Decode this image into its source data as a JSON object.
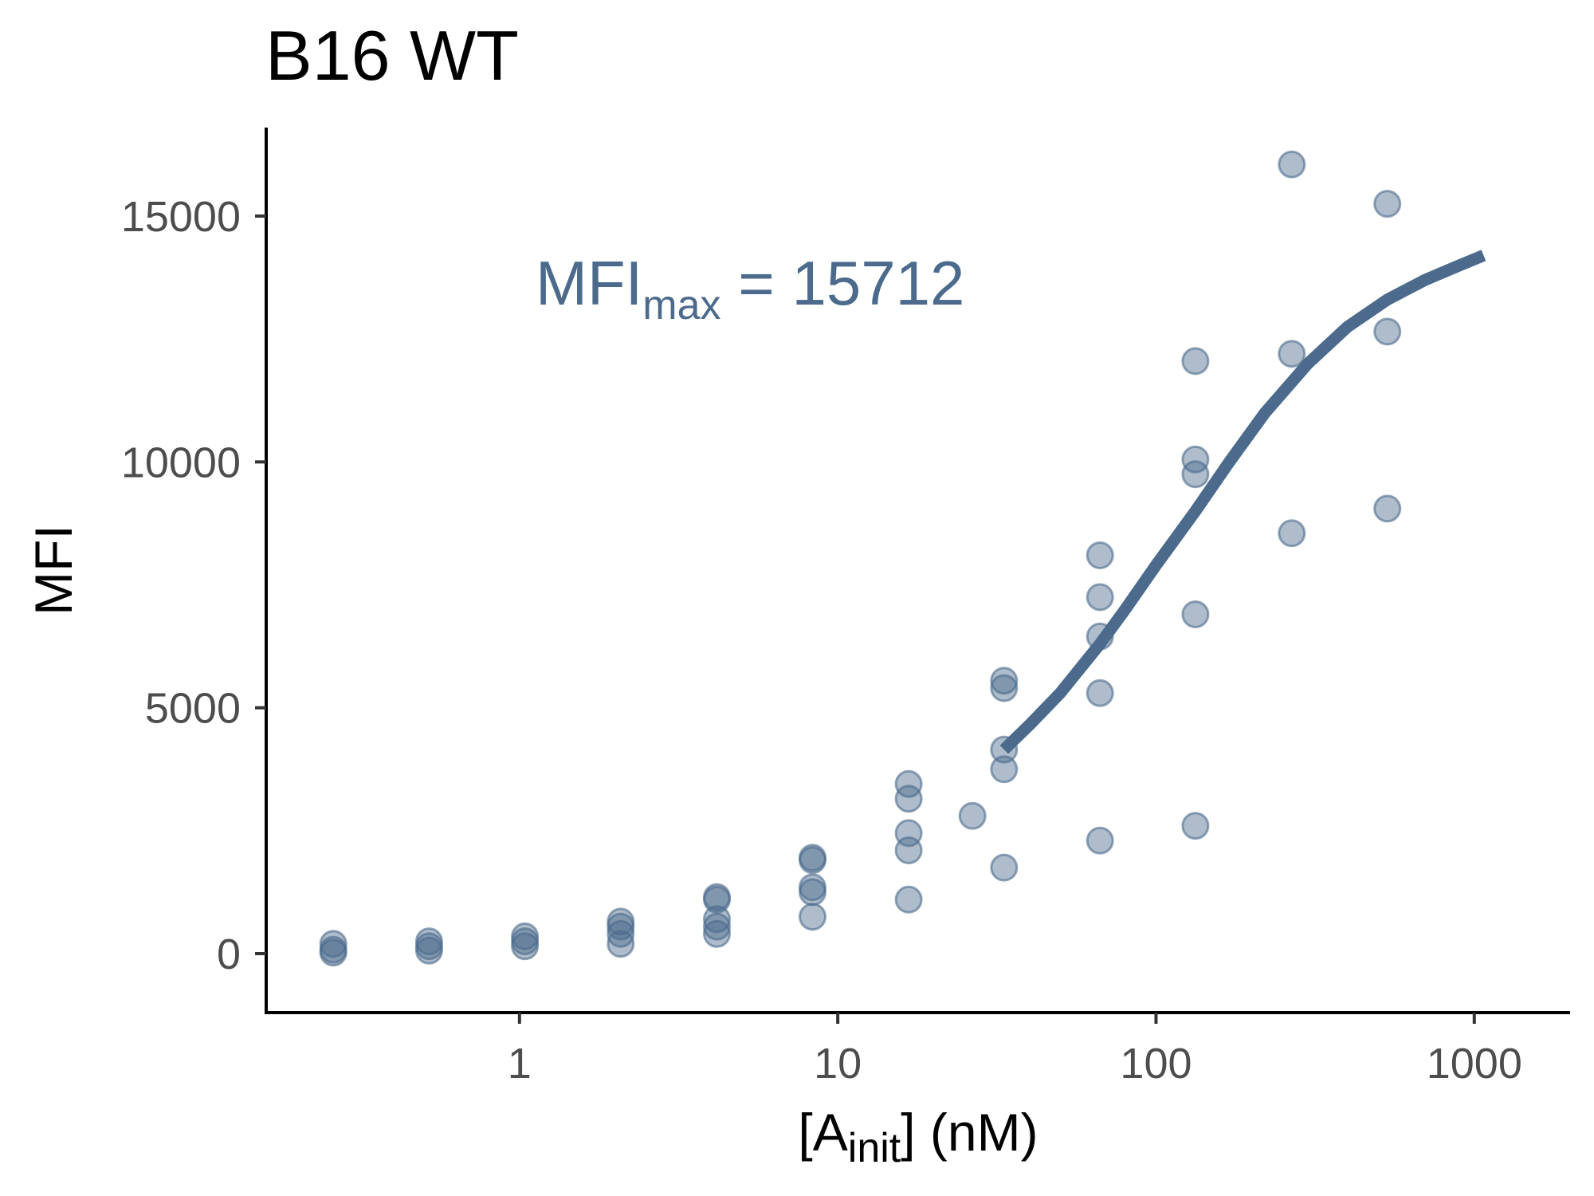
{
  "chart_data": {
    "type": "scatter",
    "title": "B16 WT",
    "xlabel": {
      "main": "[A",
      "sub": "init",
      "end": "] (nM)"
    },
    "ylabel": "MFI",
    "x_scale": "log10",
    "xlim": [
      0.16,
      2000
    ],
    "ylim": [
      -1200,
      16800
    ],
    "x_ticks": [
      1,
      10,
      100,
      1000
    ],
    "x_tick_labels": [
      "1",
      "10",
      "100",
      "1000"
    ],
    "y_ticks": [
      0,
      5000,
      10000,
      15000
    ],
    "y_tick_labels": [
      "0",
      "5000",
      "10000",
      "15000"
    ],
    "grid": false,
    "legend": "none",
    "colors": {
      "points": "#4b6a8c",
      "fit_line": "#4b6a8c",
      "annotation": "#4b6a8c",
      "axis": "#000000"
    },
    "annotation": {
      "main": "MFI",
      "sub": "max",
      "rest": " = 15712"
    },
    "points": [
      {
        "x": 0.26,
        "y": 200
      },
      {
        "x": 0.26,
        "y": 80
      },
      {
        "x": 0.26,
        "y": 20
      },
      {
        "x": 0.52,
        "y": 250
      },
      {
        "x": 0.52,
        "y": 150
      },
      {
        "x": 0.52,
        "y": 60
      },
      {
        "x": 1.04,
        "y": 350
      },
      {
        "x": 1.04,
        "y": 250
      },
      {
        "x": 1.04,
        "y": 150
      },
      {
        "x": 2.08,
        "y": 650
      },
      {
        "x": 2.08,
        "y": 550
      },
      {
        "x": 2.08,
        "y": 400
      },
      {
        "x": 2.08,
        "y": 200
      },
      {
        "x": 4.17,
        "y": 1150
      },
      {
        "x": 4.17,
        "y": 1100
      },
      {
        "x": 4.17,
        "y": 700
      },
      {
        "x": 4.17,
        "y": 550
      },
      {
        "x": 4.17,
        "y": 400
      },
      {
        "x": 8.33,
        "y": 1950
      },
      {
        "x": 8.33,
        "y": 1900
      },
      {
        "x": 8.33,
        "y": 1350
      },
      {
        "x": 8.33,
        "y": 1250
      },
      {
        "x": 8.33,
        "y": 750
      },
      {
        "x": 16.7,
        "y": 3450
      },
      {
        "x": 16.7,
        "y": 3150
      },
      {
        "x": 16.7,
        "y": 2450
      },
      {
        "x": 16.7,
        "y": 2100
      },
      {
        "x": 16.7,
        "y": 1100
      },
      {
        "x": 26.5,
        "y": 2800
      },
      {
        "x": 33.3,
        "y": 5550
      },
      {
        "x": 33.3,
        "y": 5400
      },
      {
        "x": 33.3,
        "y": 4150
      },
      {
        "x": 33.3,
        "y": 3750
      },
      {
        "x": 33.3,
        "y": 1750
      },
      {
        "x": 66.7,
        "y": 8100
      },
      {
        "x": 66.7,
        "y": 7250
      },
      {
        "x": 66.7,
        "y": 6450
      },
      {
        "x": 66.7,
        "y": 5300
      },
      {
        "x": 66.7,
        "y": 2300
      },
      {
        "x": 133,
        "y": 12050
      },
      {
        "x": 133,
        "y": 10050
      },
      {
        "x": 133,
        "y": 9750
      },
      {
        "x": 133,
        "y": 6900
      },
      {
        "x": 133,
        "y": 2600
      },
      {
        "x": 267,
        "y": 16050
      },
      {
        "x": 267,
        "y": 12200
      },
      {
        "x": 267,
        "y": 8550
      },
      {
        "x": 533,
        "y": 15250
      },
      {
        "x": 533,
        "y": 12650
      },
      {
        "x": 533,
        "y": 9050
      }
    ],
    "fit_curve": [
      {
        "x": 33.3,
        "y": 4150
      },
      {
        "x": 40,
        "y": 4650
      },
      {
        "x": 50,
        "y": 5300
      },
      {
        "x": 66.7,
        "y": 6300
      },
      {
        "x": 80,
        "y": 7000
      },
      {
        "x": 100,
        "y": 7900
      },
      {
        "x": 133,
        "y": 9000
      },
      {
        "x": 170,
        "y": 10000
      },
      {
        "x": 220,
        "y": 11000
      },
      {
        "x": 300,
        "y": 12000
      },
      {
        "x": 400,
        "y": 12750
      },
      {
        "x": 533,
        "y": 13300
      },
      {
        "x": 700,
        "y": 13700
      },
      {
        "x": 900,
        "y": 14000
      },
      {
        "x": 1070,
        "y": 14200
      }
    ]
  }
}
